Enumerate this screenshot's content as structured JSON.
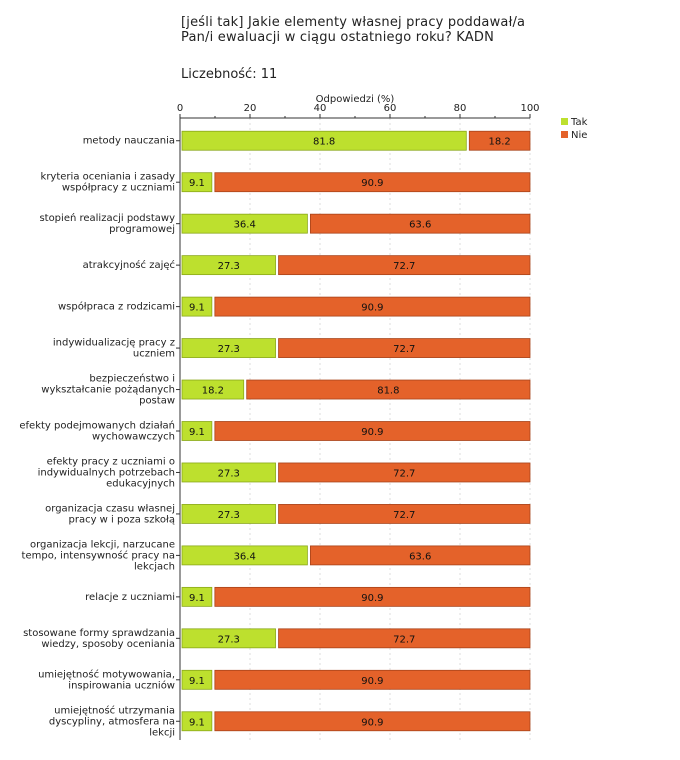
{
  "header": {
    "title_line1": "[jeśli tak]  Jakie elementy własnej pracy poddawał/a",
    "title_line2": "Pan/i ewaluacji w ciągu ostatniego roku? KADN",
    "count_label": "Liczebność: 11"
  },
  "colors": {
    "tak": "#bde02e",
    "nie": "#e4622a",
    "tak_border": "#8aa81a",
    "nie_border": "#a8431a"
  },
  "chart_data": {
    "type": "bar",
    "orientation": "horizontal",
    "stacked": true,
    "xlabel": "Odpowiedzi (%)",
    "xlim": [
      0,
      100
    ],
    "xticks": [
      0,
      20,
      40,
      60,
      80,
      100
    ],
    "grid": true,
    "legend_position": "top-right",
    "categories": [
      [
        "metody nauczania"
      ],
      [
        "kryteria oceniania  i zasady",
        "współpracy z uczniami"
      ],
      [
        "stopień realizacji podstawy",
        "programowej"
      ],
      [
        "atrakcyjność zajęć"
      ],
      [
        "współpraca z rodzicami"
      ],
      [
        "indywidualizację pracy z",
        "uczniem"
      ],
      [
        "bezpieczeństwo i",
        "wykształcanie pożądanych",
        "postaw"
      ],
      [
        "efekty podejmowanych działań",
        "wychowawczych"
      ],
      [
        "efekty pracy z uczniami o",
        "indywidualnych potrzebach",
        "edukacyjnych"
      ],
      [
        "organizacja czasu własnej",
        "pracy w i poza szkołą"
      ],
      [
        "organizacja lekcji, narzucane",
        "tempo, intensywność pracy na",
        "lekcjach"
      ],
      [
        "relacje z uczniami"
      ],
      [
        "stosowane formy sprawdzania",
        "wiedzy, sposoby oceniania"
      ],
      [
        "umiejętność motywowania,",
        "inspirowania uczniów"
      ],
      [
        "umiejętność utrzymania",
        "dyscypliny, atmosfera na",
        "lekcji"
      ]
    ],
    "series": [
      {
        "name": "Tak",
        "values": [
          81.8,
          9.1,
          36.4,
          27.3,
          9.1,
          27.3,
          18.2,
          9.1,
          27.3,
          27.3,
          36.4,
          9.1,
          27.3,
          9.1,
          9.1
        ]
      },
      {
        "name": "Nie",
        "values": [
          18.2,
          90.9,
          63.6,
          72.7,
          90.9,
          72.7,
          81.8,
          90.9,
          72.7,
          72.7,
          63.6,
          90.9,
          72.7,
          90.9,
          90.9
        ]
      }
    ]
  }
}
